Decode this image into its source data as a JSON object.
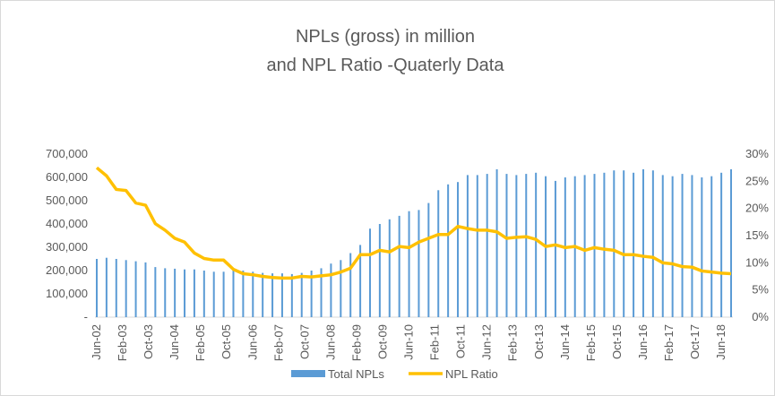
{
  "chart_data": {
    "type": "bar-line",
    "title": "NPLs (gross) in million",
    "subtitle": "and NPL Ratio -Quaterly Data",
    "xticks": [
      "Jun-02",
      "Feb-03",
      "Oct-03",
      "Jun-04",
      "Feb-05",
      "Oct-05",
      "Jun-06",
      "Feb-07",
      "Oct-07",
      "Jun-08",
      "Feb-09",
      "Oct-09",
      "Jun-10",
      "Feb-11",
      "Oct-11",
      "Jun-12",
      "Feb-13",
      "Oct-13",
      "Jun-14",
      "Feb-15",
      "Oct-15",
      "Jun-16",
      "Feb-17",
      "Oct-17",
      "Jun-18"
    ],
    "series": [
      {
        "name": "Total NPLs",
        "color": "#5b9bd5",
        "type": "bar",
        "values": [
          250000,
          255000,
          250000,
          245000,
          240000,
          235000,
          215000,
          210000,
          208000,
          205000,
          205000,
          200000,
          195000,
          195000,
          200000,
          200000,
          195000,
          190000,
          188000,
          188000,
          185000,
          190000,
          200000,
          210000,
          230000,
          245000,
          275000,
          310000,
          380000,
          400000,
          420000,
          435000,
          455000,
          460000,
          490000,
          545000,
          570000,
          580000,
          610000,
          610000,
          615000,
          635000,
          615000,
          610000,
          615000,
          620000,
          605000,
          585000,
          600000,
          605000,
          610000,
          615000,
          620000,
          630000,
          630000,
          620000,
          635000,
          630000,
          610000,
          605000,
          615000,
          610000,
          600000,
          605000,
          620000,
          635000
        ]
      },
      {
        "name": "NPL Ratio",
        "color": "#ffc000",
        "type": "line",
        "axis": "y2",
        "values": [
          27.5,
          26,
          23.5,
          23.3,
          21,
          20.6,
          17.2,
          16,
          14.5,
          13.8,
          11.8,
          10.8,
          10.5,
          10.5,
          8.8,
          8,
          7.8,
          7.5,
          7.3,
          7.2,
          7.2,
          7.5,
          7.4,
          7.6,
          7.8,
          8.3,
          9,
          11.5,
          11.5,
          12.3,
          12,
          13,
          12.8,
          13.8,
          14.5,
          15.2,
          15.2,
          16.7,
          16.3,
          16,
          16,
          15.7,
          14.5,
          14.7,
          14.8,
          14.3,
          13,
          13.3,
          12.8,
          13,
          12.3,
          12.8,
          12.5,
          12.3,
          11.5,
          11.5,
          11.2,
          11,
          10,
          9.8,
          9.3,
          9.2,
          8.5,
          8.3,
          8.1,
          8
        ]
      }
    ],
    "ylim": [
      0,
      700000
    ],
    "yticks": [
      {
        "value": 0,
        "label": "-"
      },
      {
        "value": 100000,
        "label": "100,000"
      },
      {
        "value": 200000,
        "label": "200,000"
      },
      {
        "value": 300000,
        "label": "300,000"
      },
      {
        "value": 400000,
        "label": "400,000"
      },
      {
        "value": 500000,
        "label": "500,000"
      },
      {
        "value": 600000,
        "label": "600,000"
      },
      {
        "value": 700000,
        "label": "700,000"
      }
    ],
    "y2lim": [
      0,
      30
    ],
    "y2ticks": [
      {
        "value": 0,
        "label": "0%"
      },
      {
        "value": 5,
        "label": "5%"
      },
      {
        "value": 10,
        "label": "10%"
      },
      {
        "value": 15,
        "label": "15%"
      },
      {
        "value": 20,
        "label": "20%"
      },
      {
        "value": 25,
        "label": "25%"
      },
      {
        "value": 30,
        "label": "30%"
      }
    ],
    "legend": "bottom"
  }
}
